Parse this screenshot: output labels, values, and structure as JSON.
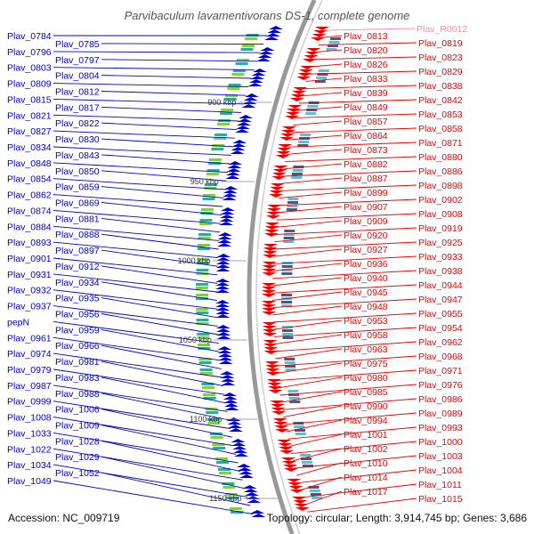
{
  "title": "Parvibaculum lavamentivorans DS-1, complete genome",
  "accession_text": "Accession: NC_009719",
  "summary_text": "Topology: circular; Length: 3,914,745 bp; Genes: 3,686",
  "colors": {
    "forward": "#0000cc",
    "reverse": "#ee0000",
    "rna": "#ff88aa",
    "backbone": "#999999",
    "gc_mark": "#22aa22"
  },
  "kbp_ticks": [
    {
      "label": "900 kbp"
    },
    {
      "label": "950 kbp"
    },
    {
      "label": "1000 kbp"
    },
    {
      "label": "1050 kbp"
    },
    {
      "label": "1100 kbp"
    },
    {
      "label": "1150 kbp"
    }
  ],
  "left_labels": [
    {
      "text": "Plav_0784"
    },
    {
      "text": "Plav_0785"
    },
    {
      "text": "Plav_0796"
    },
    {
      "text": "Plav_0797"
    },
    {
      "text": "Plav_0803"
    },
    {
      "text": "Plav_0804"
    },
    {
      "text": "Plav_0809"
    },
    {
      "text": "Plav_0812"
    },
    {
      "text": "Plav_0815"
    },
    {
      "text": "Plav_0817"
    },
    {
      "text": "Plav_0821"
    },
    {
      "text": "Plav_0822"
    },
    {
      "text": "Plav_0827"
    },
    {
      "text": "Plav_0830"
    },
    {
      "text": "Plav_0834"
    },
    {
      "text": "Plav_0843"
    },
    {
      "text": "Plav_0848"
    },
    {
      "text": "Plav_0850"
    },
    {
      "text": "Plav_0854"
    },
    {
      "text": "Plav_0859"
    },
    {
      "text": "Plav_0862"
    },
    {
      "text": "Plav_0869"
    },
    {
      "text": "Plav_0874"
    },
    {
      "text": "Plav_0881"
    },
    {
      "text": "Plav_0884"
    },
    {
      "text": "Plav_0888"
    },
    {
      "text": "Plav_0893"
    },
    {
      "text": "Plav_0897"
    },
    {
      "text": "Plav_0901"
    },
    {
      "text": "Plav_0912"
    },
    {
      "text": "Plav_0931"
    },
    {
      "text": "Plav_0934"
    },
    {
      "text": "Plav_0932"
    },
    {
      "text": "Plav_0935"
    },
    {
      "text": "Plav_0937"
    },
    {
      "text": "Plav_0956"
    },
    {
      "text": "pepN"
    },
    {
      "text": "Plav_0959"
    },
    {
      "text": "Plav_0961"
    },
    {
      "text": "Plav_0966"
    },
    {
      "text": "Plav_0974"
    },
    {
      "text": "Plav_0981"
    },
    {
      "text": "Plav_0979"
    },
    {
      "text": "Plav_0983"
    },
    {
      "text": "Plav_0987"
    },
    {
      "text": "Plav_0988"
    },
    {
      "text": "Plav_0999"
    },
    {
      "text": "Plav_1006"
    },
    {
      "text": "Plav_1008"
    },
    {
      "text": "Plav_1009"
    },
    {
      "text": "Plav_1033"
    },
    {
      "text": "Plav_1028"
    },
    {
      "text": "Plav_1022"
    },
    {
      "text": "Plav_1029"
    },
    {
      "text": "Plav_1034"
    },
    {
      "text": "Plav_1052"
    },
    {
      "text": "Plav_1049"
    }
  ],
  "right_labels": [
    {
      "text": "Plav_R0012"
    },
    {
      "text": "Plav_0813"
    },
    {
      "text": "Plav_0819"
    },
    {
      "text": "Plav_0820"
    },
    {
      "text": "Plav_0823"
    },
    {
      "text": "Plav_0826"
    },
    {
      "text": "Plav_0829"
    },
    {
      "text": "Plav_0833"
    },
    {
      "text": "Plav_0838"
    },
    {
      "text": "Plav_0839"
    },
    {
      "text": "Plav_0842"
    },
    {
      "text": "Plav_0849"
    },
    {
      "text": "Plav_0853"
    },
    {
      "text": "Plav_0857"
    },
    {
      "text": "Plav_0858"
    },
    {
      "text": "Plav_0864"
    },
    {
      "text": "Plav_0871"
    },
    {
      "text": "Plav_0873"
    },
    {
      "text": "Plav_0880"
    },
    {
      "text": "Plav_0882"
    },
    {
      "text": "Plav_0886"
    },
    {
      "text": "Plav_0887"
    },
    {
      "text": "Plav_0898"
    },
    {
      "text": "Plav_0899"
    },
    {
      "text": "Plav_0902"
    },
    {
      "text": "Plav_0907"
    },
    {
      "text": "Plav_0908"
    },
    {
      "text": "Plav_0909"
    },
    {
      "text": "Plav_0919"
    },
    {
      "text": "Plav_0920"
    },
    {
      "text": "Plav_0925"
    },
    {
      "text": "Plav_0927"
    },
    {
      "text": "Plav_0933"
    },
    {
      "text": "Plav_0936"
    },
    {
      "text": "Plav_0938"
    },
    {
      "text": "Plav_0940"
    },
    {
      "text": "Plav_0944"
    },
    {
      "text": "Plav_0945"
    },
    {
      "text": "Plav_0947"
    },
    {
      "text": "Plav_0948"
    },
    {
      "text": "Plav_0955"
    },
    {
      "text": "Plav_0953"
    },
    {
      "text": "Plav_0954"
    },
    {
      "text": "Plav_0958"
    },
    {
      "text": "Plav_0962"
    },
    {
      "text": "Plav_0963"
    },
    {
      "text": "Plav_0968"
    },
    {
      "text": "Plav_0975"
    },
    {
      "text": "Plav_0971"
    },
    {
      "text": "Plav_0980"
    },
    {
      "text": "Plav_0976"
    },
    {
      "text": "Plav_0985"
    },
    {
      "text": "Plav_0986"
    },
    {
      "text": "Plav_0990"
    },
    {
      "text": "Plav_0989"
    },
    {
      "text": "Plav_0994"
    },
    {
      "text": "Plav_0993"
    },
    {
      "text": "Plav_1001"
    },
    {
      "text": "Plav_1000"
    },
    {
      "text": "Plav_1002"
    },
    {
      "text": "Plav_1003"
    },
    {
      "text": "Plav_1010"
    },
    {
      "text": "Plav_1004"
    },
    {
      "text": "Plav_1014"
    },
    {
      "text": "Plav_1011"
    },
    {
      "text": "Plav_1017"
    },
    {
      "text": "Plav_1015"
    }
  ]
}
